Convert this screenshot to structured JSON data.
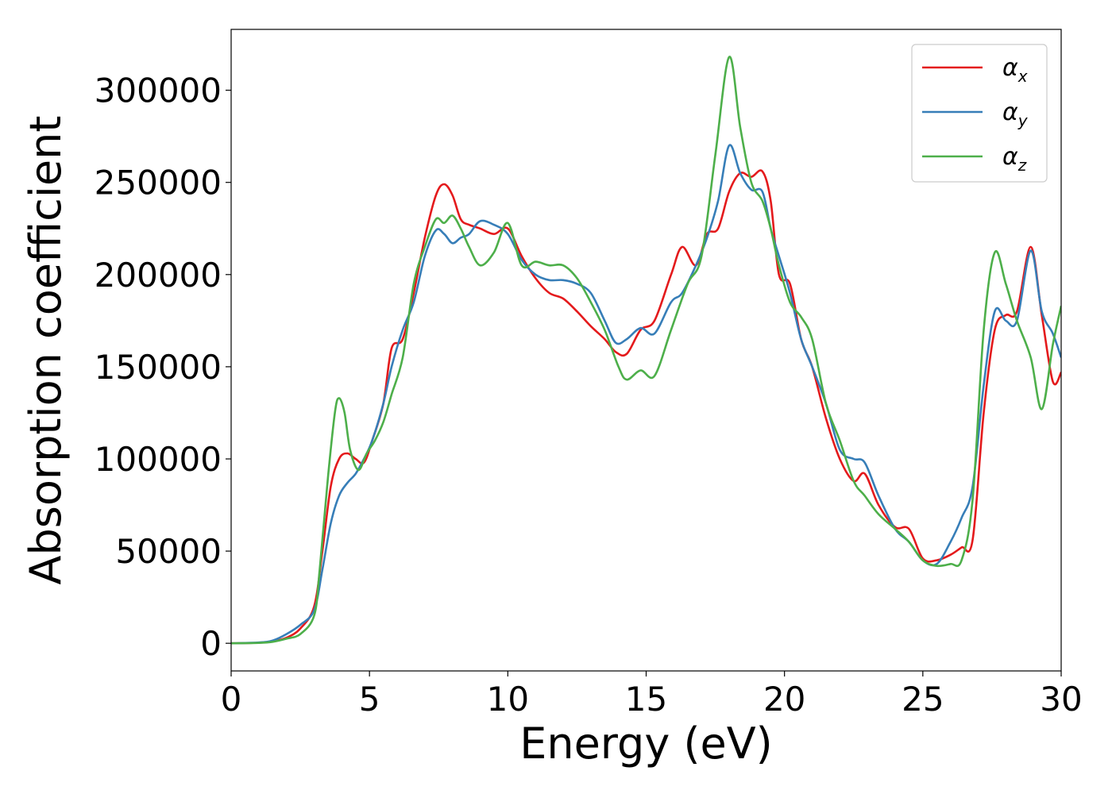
{
  "chart_data": {
    "type": "line",
    "xlabel": "Energy (eV)",
    "ylabel": "Absorption coefficient",
    "xlim": [
      0,
      30
    ],
    "ylim": [
      -15000,
      333000
    ],
    "xticks": [
      0,
      5,
      10,
      15,
      20,
      25,
      30
    ],
    "xtick_labels": [
      "0",
      "5",
      "10",
      "15",
      "20",
      "25",
      "30"
    ],
    "yticks": [
      0,
      50000,
      100000,
      150000,
      200000,
      250000,
      300000
    ],
    "ytick_labels": [
      "0",
      "50000",
      "100000",
      "150000",
      "200000",
      "250000",
      "300000"
    ],
    "grid": false,
    "legend_position": "top-right",
    "series": [
      {
        "name": "αx",
        "symbol": "α",
        "sub": "x",
        "color": "#e41a1c",
        "x": [
          0,
          1,
          1.5,
          2,
          2.5,
          3,
          3.3,
          3.6,
          3.9,
          4.2,
          4.5,
          4.8,
          5.1,
          5.5,
          5.8,
          6.2,
          6.6,
          7.0,
          7.4,
          7.7,
          8.0,
          8.3,
          8.6,
          9.0,
          9.5,
          10.0,
          10.5,
          11.0,
          11.5,
          12.0,
          12.5,
          13.0,
          13.5,
          13.9,
          14.3,
          14.8,
          15.3,
          15.9,
          16.3,
          16.8,
          17.2,
          17.6,
          18.0,
          18.4,
          18.8,
          19.2,
          19.5,
          19.8,
          20.2,
          20.6,
          21.0,
          21.5,
          22.0,
          22.5,
          22.9,
          23.4,
          24.0,
          24.5,
          25.0,
          25.5,
          26.0,
          26.4,
          26.8,
          27.2,
          27.6,
          28.0,
          28.4,
          28.9,
          29.3,
          29.7,
          30.0
        ],
        "y": [
          0,
          300,
          1000,
          3000,
          8000,
          20000,
          50000,
          85000,
          100000,
          103000,
          100000,
          98000,
          110000,
          130000,
          160000,
          165000,
          190000,
          220000,
          243000,
          249000,
          243000,
          230000,
          227000,
          225000,
          222000,
          225000,
          210000,
          198000,
          190000,
          187000,
          180000,
          172000,
          165000,
          158000,
          157000,
          170000,
          175000,
          200000,
          215000,
          205000,
          222000,
          225000,
          245000,
          255000,
          253000,
          256000,
          240000,
          200000,
          195000,
          165000,
          150000,
          122000,
          100000,
          88000,
          92000,
          75000,
          63000,
          62000,
          46000,
          45000,
          48000,
          52000,
          56000,
          125000,
          170000,
          178000,
          180000,
          215000,
          178000,
          142000,
          147000
        ]
      },
      {
        "name": "αy",
        "symbol": "α",
        "sub": "y",
        "color": "#377eb8",
        "x": [
          0,
          1,
          1.5,
          2,
          2.5,
          3,
          3.3,
          3.6,
          3.9,
          4.2,
          4.5,
          4.8,
          5.1,
          5.5,
          5.8,
          6.2,
          6.6,
          7.0,
          7.4,
          7.7,
          8.0,
          8.3,
          8.6,
          9.0,
          9.5,
          10.0,
          10.5,
          11.0,
          11.5,
          12.0,
          12.5,
          13.0,
          13.5,
          13.9,
          14.3,
          14.8,
          15.3,
          15.9,
          16.3,
          16.8,
          17.2,
          17.6,
          18.0,
          18.4,
          18.8,
          19.2,
          19.5,
          19.8,
          20.2,
          20.6,
          21.0,
          21.5,
          22.0,
          22.5,
          22.9,
          23.4,
          24.0,
          24.5,
          25.0,
          25.5,
          26.0,
          26.4,
          26.8,
          27.2,
          27.6,
          28.0,
          28.4,
          28.9,
          29.3,
          29.7,
          30.0
        ],
        "y": [
          0,
          400,
          1500,
          5000,
          10000,
          18000,
          40000,
          65000,
          80000,
          87000,
          92000,
          100000,
          110000,
          130000,
          150000,
          170000,
          185000,
          210000,
          224000,
          222000,
          217000,
          220000,
          222000,
          229000,
          227000,
          222000,
          208000,
          200000,
          197000,
          197000,
          195000,
          190000,
          175000,
          163000,
          165000,
          171000,
          168000,
          185000,
          190000,
          205000,
          220000,
          240000,
          270000,
          255000,
          246000,
          245000,
          225000,
          210000,
          190000,
          165000,
          150000,
          130000,
          105000,
          100000,
          98000,
          80000,
          62000,
          55000,
          45000,
          43000,
          55000,
          68000,
          85000,
          140000,
          180000,
          175000,
          175000,
          213000,
          180000,
          168000,
          155000
        ]
      },
      {
        "name": "αz",
        "symbol": "α",
        "sub": "z",
        "color": "#4daf4a",
        "x": [
          0,
          1,
          1.5,
          2,
          2.5,
          3,
          3.2,
          3.5,
          3.75,
          3.9,
          4.1,
          4.3,
          4.6,
          4.9,
          5.2,
          5.5,
          5.8,
          6.2,
          6.6,
          7.0,
          7.4,
          7.7,
          8.0,
          8.3,
          8.6,
          9.0,
          9.5,
          10.0,
          10.5,
          11.0,
          11.5,
          12.0,
          12.5,
          13.0,
          13.5,
          14.0,
          14.3,
          14.8,
          15.3,
          15.9,
          16.5,
          17.0,
          17.5,
          18.0,
          18.4,
          18.8,
          19.2,
          19.5,
          19.8,
          20.2,
          20.6,
          21.0,
          21.5,
          22.0,
          22.5,
          22.9,
          23.4,
          24.0,
          24.5,
          25.0,
          25.5,
          26.0,
          26.4,
          26.8,
          27.2,
          27.6,
          28.0,
          28.4,
          28.9,
          29.3,
          29.7,
          30.0
        ],
        "y": [
          0,
          200,
          800,
          2500,
          5000,
          15000,
          40000,
          90000,
          125000,
          133000,
          125000,
          105000,
          94000,
          103000,
          110000,
          120000,
          135000,
          155000,
          195000,
          215000,
          230000,
          228000,
          232000,
          225000,
          215000,
          205000,
          212000,
          228000,
          205000,
          207000,
          205000,
          205000,
          198000,
          185000,
          170000,
          150000,
          143000,
          148000,
          145000,
          170000,
          195000,
          210000,
          265000,
          318000,
          280000,
          250000,
          240000,
          225000,
          205000,
          185000,
          177000,
          165000,
          130000,
          110000,
          88000,
          80000,
          70000,
          62000,
          55000,
          45000,
          42000,
          43000,
          45000,
          78000,
          170000,
          212000,
          195000,
          175000,
          155000,
          127000,
          162000,
          183000
        ]
      }
    ]
  }
}
